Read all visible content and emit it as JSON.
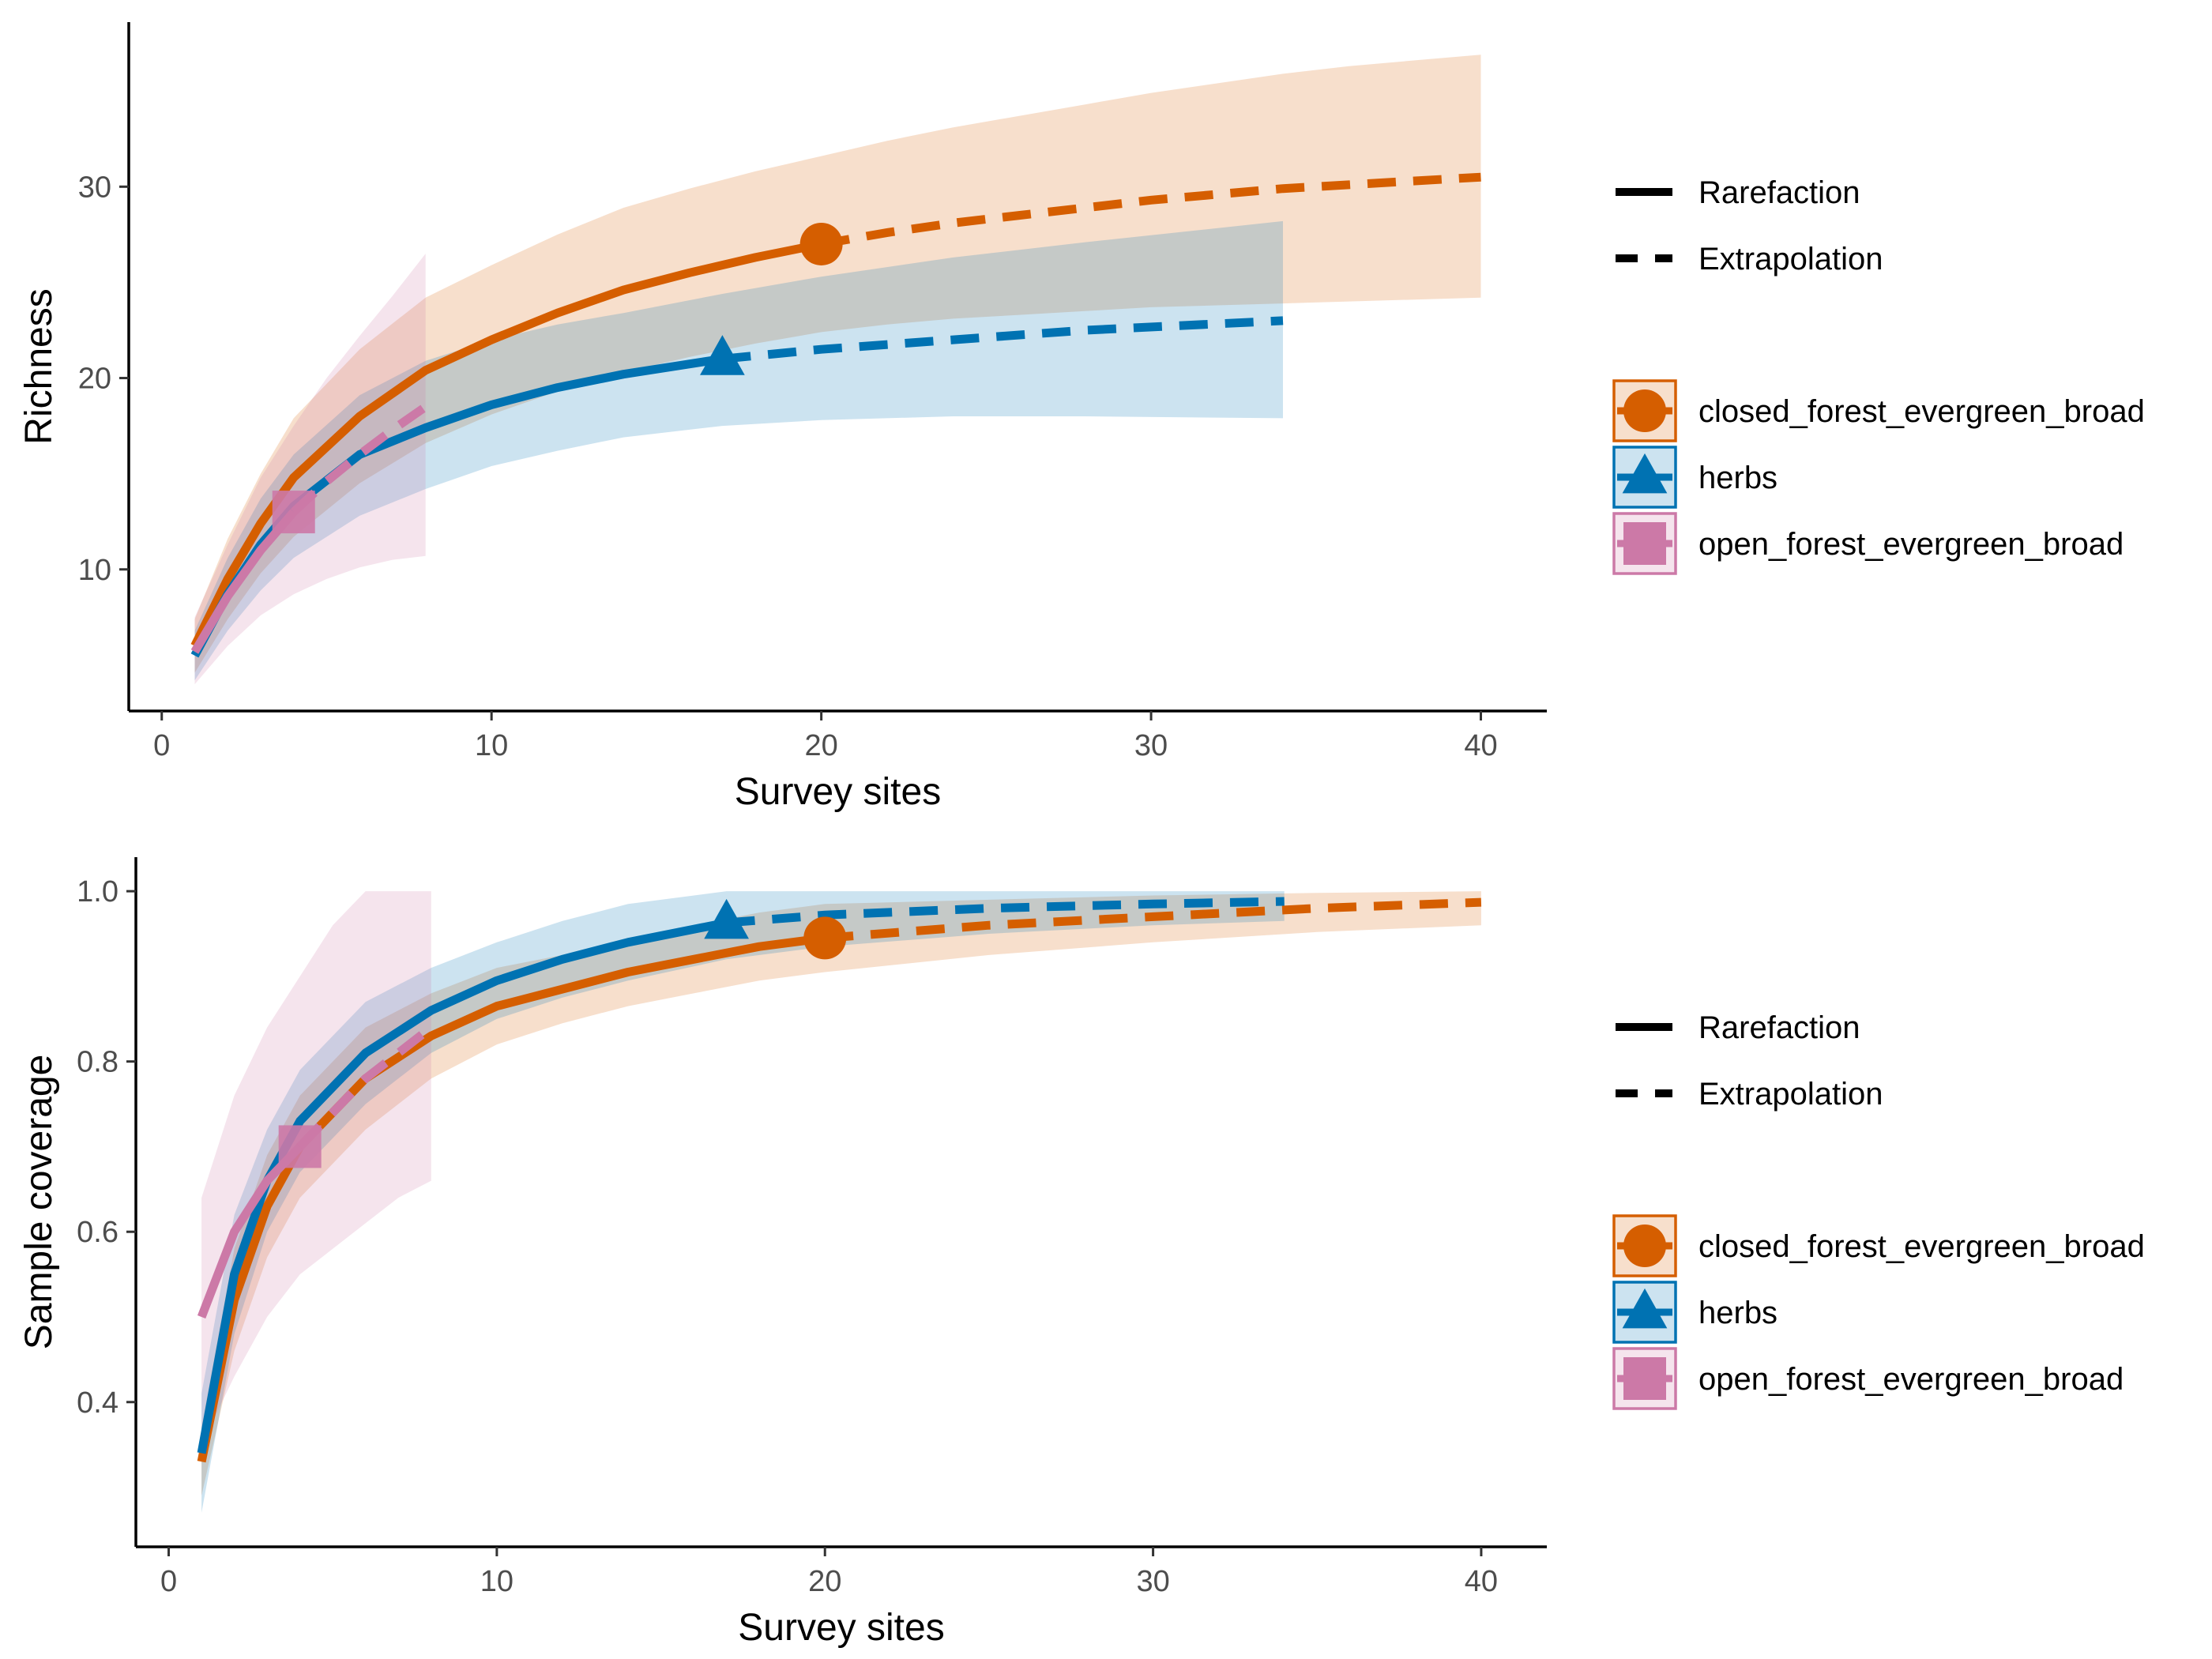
{
  "colors": {
    "closed_forest_evergreen_broad": "#D55E00",
    "herbs": "#0072B2",
    "open_forest_evergreen_broad": "#CC79A7",
    "overlap_band": "#bdbdbd"
  },
  "legend": {
    "method_items": [
      "Rarefaction",
      "Extrapolation"
    ],
    "group_items": [
      {
        "label": "closed_forest_evergreen_broad",
        "shape": "circle-icon"
      },
      {
        "label": "herbs",
        "shape": "triangle-icon"
      },
      {
        "label": "open_forest_evergreen_broad",
        "shape": "square-icon"
      }
    ],
    "placement": "right"
  },
  "chart_data": [
    {
      "type": "line",
      "xlabel": "Survey sites",
      "ylabel": "Richness",
      "xlim": [
        -1,
        42
      ],
      "ylim": [
        2.6,
        38.6
      ],
      "xticks": [
        "0",
        "10",
        "20",
        "30",
        "40"
      ],
      "xtick_values": [
        0,
        10,
        20,
        30,
        40
      ],
      "yticks": [
        "10",
        "20",
        "30"
      ],
      "ytick_values": [
        10,
        20,
        30
      ],
      "grid": false,
      "series": [
        {
          "name": "closed_forest_evergreen_broad",
          "observed": {
            "x": 20,
            "y": 27
          },
          "x": [
            1,
            2,
            3,
            4,
            6,
            8,
            10,
            12,
            14,
            16,
            18,
            20,
            22,
            24,
            26,
            28,
            30,
            32,
            34,
            36,
            38,
            40
          ],
          "y": [
            6,
            9.5,
            12.4,
            14.8,
            18,
            20.4,
            22,
            23.4,
            24.6,
            25.5,
            26.3,
            27,
            27.6,
            28.1,
            28.5,
            28.9,
            29.3,
            29.6,
            29.9,
            30.1,
            30.3,
            30.5
          ],
          "lower": [
            4.6,
            7.4,
            9.8,
            11.7,
            14.5,
            16.6,
            18.1,
            19.3,
            20.3,
            21.1,
            21.8,
            22.4,
            22.8,
            23.1,
            23.3,
            23.5,
            23.7,
            23.8,
            23.9,
            24,
            24.1,
            24.2
          ],
          "upper": [
            7.4,
            11.6,
            15,
            17.9,
            21.5,
            24.2,
            25.9,
            27.5,
            28.9,
            29.9,
            30.8,
            31.6,
            32.4,
            33.1,
            33.7,
            34.3,
            34.9,
            35.4,
            35.9,
            36.3,
            36.6,
            36.9
          ]
        },
        {
          "name": "herbs",
          "observed": {
            "x": 17,
            "y": 21
          },
          "x": [
            1,
            2,
            3,
            4,
            6,
            8,
            10,
            12,
            14,
            17,
            20,
            24,
            28,
            34
          ],
          "y": [
            5.5,
            8.7,
            11.3,
            13.3,
            16,
            17.4,
            18.6,
            19.5,
            20.2,
            21,
            21.5,
            22,
            22.5,
            23
          ],
          "lower": [
            4.2,
            6.8,
            8.9,
            10.6,
            12.8,
            14.2,
            15.4,
            16.2,
            16.9,
            17.5,
            17.8,
            18,
            18,
            17.9
          ],
          "upper": [
            6.8,
            10.6,
            13.7,
            16,
            19.1,
            20.9,
            22,
            22.8,
            23.4,
            24.4,
            25.3,
            26.3,
            27.1,
            28.2
          ]
        },
        {
          "name": "open_forest_evergreen_broad",
          "observed": {
            "x": 4,
            "y": 13
          },
          "x": [
            1,
            2,
            3,
            4,
            5,
            6,
            7,
            8
          ],
          "y": [
            5.7,
            8.6,
            11,
            13,
            14.6,
            16,
            17.3,
            18.5
          ],
          "lower": [
            4,
            6,
            7.6,
            8.7,
            9.5,
            10.1,
            10.5,
            10.7
          ],
          "upper": [
            7.5,
            11.3,
            14.8,
            17.5,
            20,
            22.2,
            24.3,
            26.5
          ]
        }
      ]
    },
    {
      "type": "line",
      "xlabel": "Survey sites",
      "ylabel": "Sample coverage",
      "xlim": [
        -1,
        42
      ],
      "ylim": [
        0.23,
        1.04
      ],
      "xticks": [
        "0",
        "10",
        "20",
        "30",
        "40"
      ],
      "xtick_values": [
        0,
        10,
        20,
        30,
        40
      ],
      "yticks": [
        "0.4",
        "0.6",
        "0.8",
        "1.0"
      ],
      "ytick_values": [
        0.4,
        0.6,
        0.8,
        1.0
      ],
      "grid": false,
      "series": [
        {
          "name": "closed_forest_evergreen_broad",
          "observed": {
            "x": 20,
            "y": 0.945
          },
          "x": [
            1,
            2,
            3,
            4,
            6,
            8,
            10,
            12,
            14,
            16,
            18,
            20,
            25,
            30,
            35,
            40
          ],
          "y": [
            0.33,
            0.52,
            0.63,
            0.7,
            0.78,
            0.83,
            0.865,
            0.885,
            0.905,
            0.92,
            0.935,
            0.945,
            0.96,
            0.97,
            0.98,
            0.987
          ],
          "lower": [
            0.29,
            0.46,
            0.57,
            0.64,
            0.72,
            0.78,
            0.82,
            0.845,
            0.865,
            0.88,
            0.895,
            0.905,
            0.925,
            0.94,
            0.952,
            0.96
          ],
          "upper": [
            0.37,
            0.58,
            0.69,
            0.76,
            0.84,
            0.88,
            0.91,
            0.925,
            0.945,
            0.96,
            0.975,
            0.985,
            0.99,
            0.995,
            0.998,
            1.0
          ]
        },
        {
          "name": "herbs",
          "observed": {
            "x": 17,
            "y": 0.963
          },
          "x": [
            1,
            2,
            3,
            4,
            6,
            8,
            10,
            12,
            14,
            17,
            20,
            25,
            30,
            34
          ],
          "y": [
            0.34,
            0.55,
            0.66,
            0.73,
            0.81,
            0.86,
            0.895,
            0.92,
            0.94,
            0.963,
            0.972,
            0.98,
            0.985,
            0.988
          ],
          "lower": [
            0.27,
            0.48,
            0.6,
            0.67,
            0.75,
            0.81,
            0.85,
            0.875,
            0.895,
            0.92,
            0.935,
            0.95,
            0.96,
            0.965
          ],
          "upper": [
            0.41,
            0.62,
            0.72,
            0.79,
            0.87,
            0.91,
            0.94,
            0.965,
            0.985,
            1.0,
            1.0,
            1.0,
            1.0,
            1.0
          ]
        },
        {
          "name": "open_forest_evergreen_broad",
          "observed": {
            "x": 4,
            "y": 0.7
          },
          "x": [
            1,
            2,
            3,
            4,
            5,
            6,
            7,
            8
          ],
          "y": [
            0.5,
            0.6,
            0.66,
            0.7,
            0.74,
            0.78,
            0.81,
            0.84
          ],
          "lower": [
            0.35,
            0.43,
            0.5,
            0.55,
            0.58,
            0.61,
            0.64,
            0.66
          ],
          "upper": [
            0.64,
            0.76,
            0.84,
            0.9,
            0.96,
            1.0,
            1.0,
            1.0
          ]
        }
      ]
    }
  ]
}
